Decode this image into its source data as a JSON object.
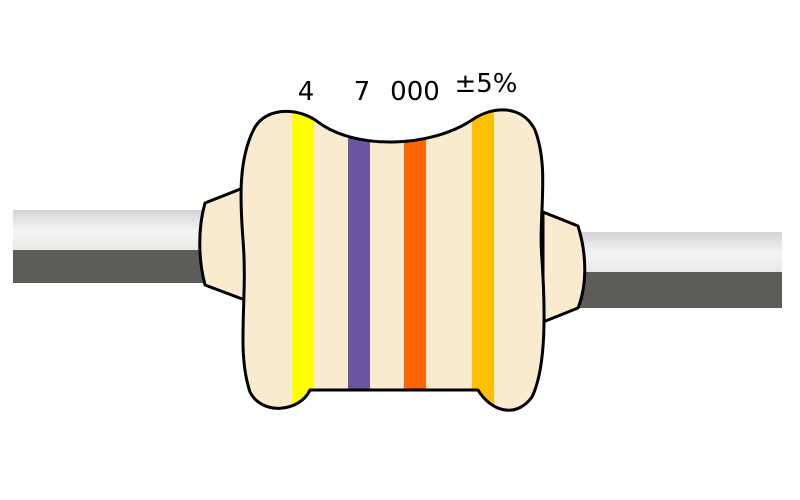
{
  "resistor": {
    "labels": {
      "band1": "4",
      "band2": "7",
      "band3": "000",
      "band4": "±5%"
    },
    "bands": [
      {
        "name": "band-1",
        "color_name": "yellow",
        "color": "#ffff00",
        "meaning": "4"
      },
      {
        "name": "band-2",
        "color_name": "violet",
        "color": "#6b56a1",
        "meaning": "7"
      },
      {
        "name": "band-3",
        "color_name": "orange",
        "color": "#ff6600",
        "meaning": "000"
      },
      {
        "name": "band-4",
        "color_name": "gold",
        "color": "#ffc000",
        "meaning": "±5%"
      }
    ],
    "colors": {
      "body_fill": "#f8ebcf",
      "outline": "#000000",
      "lead_light": "#e6e6e6",
      "lead_dark": "#5e5c58"
    }
  }
}
